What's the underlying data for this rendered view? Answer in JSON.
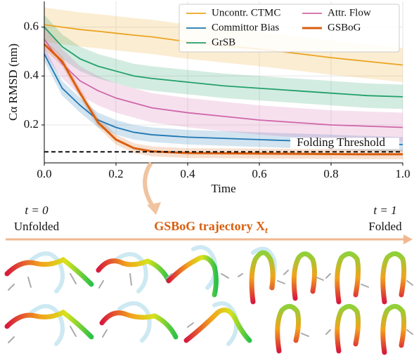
{
  "chart_data": {
    "type": "line",
    "x_label": "Time",
    "y_label": "Cα RMSD (nm)",
    "x": [
      0,
      0.05,
      0.1,
      0.15,
      0.2,
      0.25,
      0.3,
      0.4,
      0.5,
      0.6,
      0.7,
      0.8,
      0.9,
      1.0
    ],
    "series": [
      {
        "name": "Uncontr. CTMC",
        "color": "#eba420",
        "width": 1.8,
        "band": 0.07,
        "values": [
          0.61,
          0.6,
          0.59,
          0.583,
          0.575,
          0.567,
          0.56,
          0.54,
          0.525,
          0.51,
          0.493,
          0.475,
          0.46,
          0.445
        ]
      },
      {
        "name": "Committor Bias",
        "color": "#1f77b4",
        "width": 1.8,
        "band": 0.03,
        "values": [
          0.49,
          0.35,
          0.28,
          0.22,
          0.19,
          0.17,
          0.16,
          0.15,
          0.145,
          0.14,
          0.135,
          0.13,
          0.125,
          0.12
        ]
      },
      {
        "name": "GrSB",
        "color": "#23a06b",
        "width": 1.8,
        "band": 0.05,
        "values": [
          0.6,
          0.52,
          0.47,
          0.44,
          0.42,
          0.4,
          0.39,
          0.375,
          0.36,
          0.35,
          0.34,
          0.33,
          0.32,
          0.315
        ]
      },
      {
        "name": "Attr. Flow",
        "color": "#d066a8",
        "width": 1.8,
        "band": 0.06,
        "values": [
          0.55,
          0.45,
          0.38,
          0.34,
          0.31,
          0.29,
          0.27,
          0.25,
          0.235,
          0.22,
          0.21,
          0.2,
          0.195,
          0.19
        ]
      },
      {
        "name": "GSBoG",
        "color": "#d95f0e",
        "width": 3,
        "band": 0.02,
        "values": [
          0.53,
          0.46,
          0.33,
          0.21,
          0.14,
          0.105,
          0.092,
          0.085,
          0.084,
          0.083,
          0.082,
          0.081,
          0.08,
          0.08
        ]
      }
    ],
    "threshold": 0.09,
    "threshold_label": "Folding Threshold",
    "xlim": [
      0,
      1
    ],
    "ylim": [
      0.045,
      0.705
    ],
    "xticks": [
      {
        "value": 0,
        "label": "0.0"
      },
      0.2,
      0.4,
      0.6,
      0.8,
      {
        "value": 1,
        "label": "1.0"
      }
    ],
    "yticks": [
      0.2,
      0.4,
      0.6
    ],
    "grid": true,
    "legend": "upper right"
  },
  "trajectory": {
    "start_time": "t = 0",
    "start_label": "Unfolded",
    "title": "GSBoG trajectory X",
    "title_subscript": "t",
    "end_time": "t = 1",
    "end_label": "Folded"
  }
}
